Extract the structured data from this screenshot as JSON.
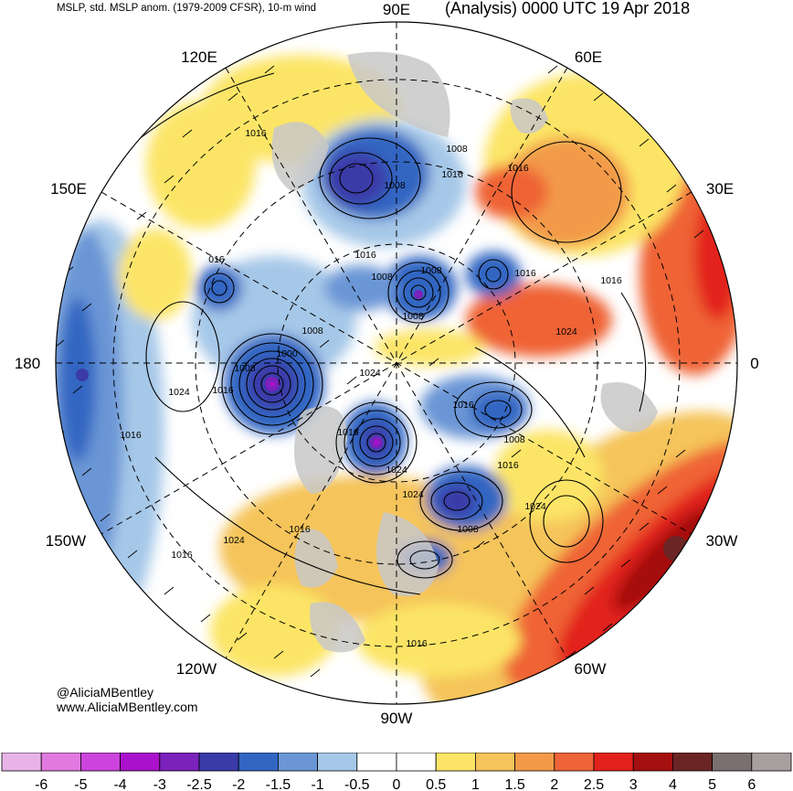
{
  "header": {
    "left": "MSLP, std. MSLP anom. (1979-2009 CFSR), 10-m wind",
    "right": "(Analysis) 0000 UTC 19 Apr 2018"
  },
  "map": {
    "projection": "north polar stereographic",
    "longitude_labels": {
      "top": "90E",
      "bottom": "90W",
      "left": "180",
      "right": "0",
      "ul1": "120E",
      "ul2": "150E",
      "ur1": "60E",
      "ur2": "30E",
      "ll1": "150W",
      "ll2": "120W",
      "lr1": "30W",
      "lr2": "60W"
    },
    "isobar_labels": {
      "a": "1016",
      "b": "1008",
      "c": "1016",
      "d": "1016",
      "e": "1008",
      "f": "016",
      "g": "1016",
      "h": "1008",
      "i": "1008",
      "j": "1016",
      "k": "1008",
      "l": "1008",
      "m": "1024",
      "n": "1000",
      "o": "1008",
      "p": "1024",
      "q": "1016",
      "r": "1024",
      "s": "1016",
      "t": "1008",
      "u": "1016",
      "v": "1016",
      "w": "1024",
      "x": "1016",
      "y": "1024",
      "z": "1024",
      "aa": "1008",
      "ab": "1016",
      "ac": "1024",
      "ad": "1016",
      "ae": "1016",
      "af": "1016",
      "ag": "1024"
    },
    "colors": {
      "land": "#c8c8c8",
      "outline": "#000000"
    }
  },
  "credits": {
    "line1": "@AliciaMBentley",
    "line2": "www.AliciaMBentley.com"
  },
  "colorbar": {
    "bins": [
      {
        "color": "#e8b4e8"
      },
      {
        "color": "#e07ae0"
      },
      {
        "color": "#cc44dd"
      },
      {
        "color": "#aa11cc"
      },
      {
        "color": "#7a22bb"
      },
      {
        "color": "#3a3aa8"
      },
      {
        "color": "#3366c2"
      },
      {
        "color": "#6a96d6"
      },
      {
        "color": "#a6c8e8"
      },
      {
        "color": "#ffffff"
      },
      {
        "color": "#ffffff"
      },
      {
        "color": "#fce566"
      },
      {
        "color": "#f5c45a"
      },
      {
        "color": "#f29a48"
      },
      {
        "color": "#ef6436"
      },
      {
        "color": "#e2211c"
      },
      {
        "color": "#a50f0f"
      },
      {
        "color": "#6b2525"
      },
      {
        "color": "#7a7070"
      },
      {
        "color": "#a8a0a0"
      }
    ],
    "tick_labels": [
      "-6",
      "-5",
      "-4",
      "-3",
      "-2.5",
      "-2",
      "-1.5",
      "-1",
      "-0.5",
      "0",
      "0.5",
      "1",
      "1.5",
      "2",
      "2.5",
      "3",
      "4",
      "5",
      "6"
    ]
  }
}
